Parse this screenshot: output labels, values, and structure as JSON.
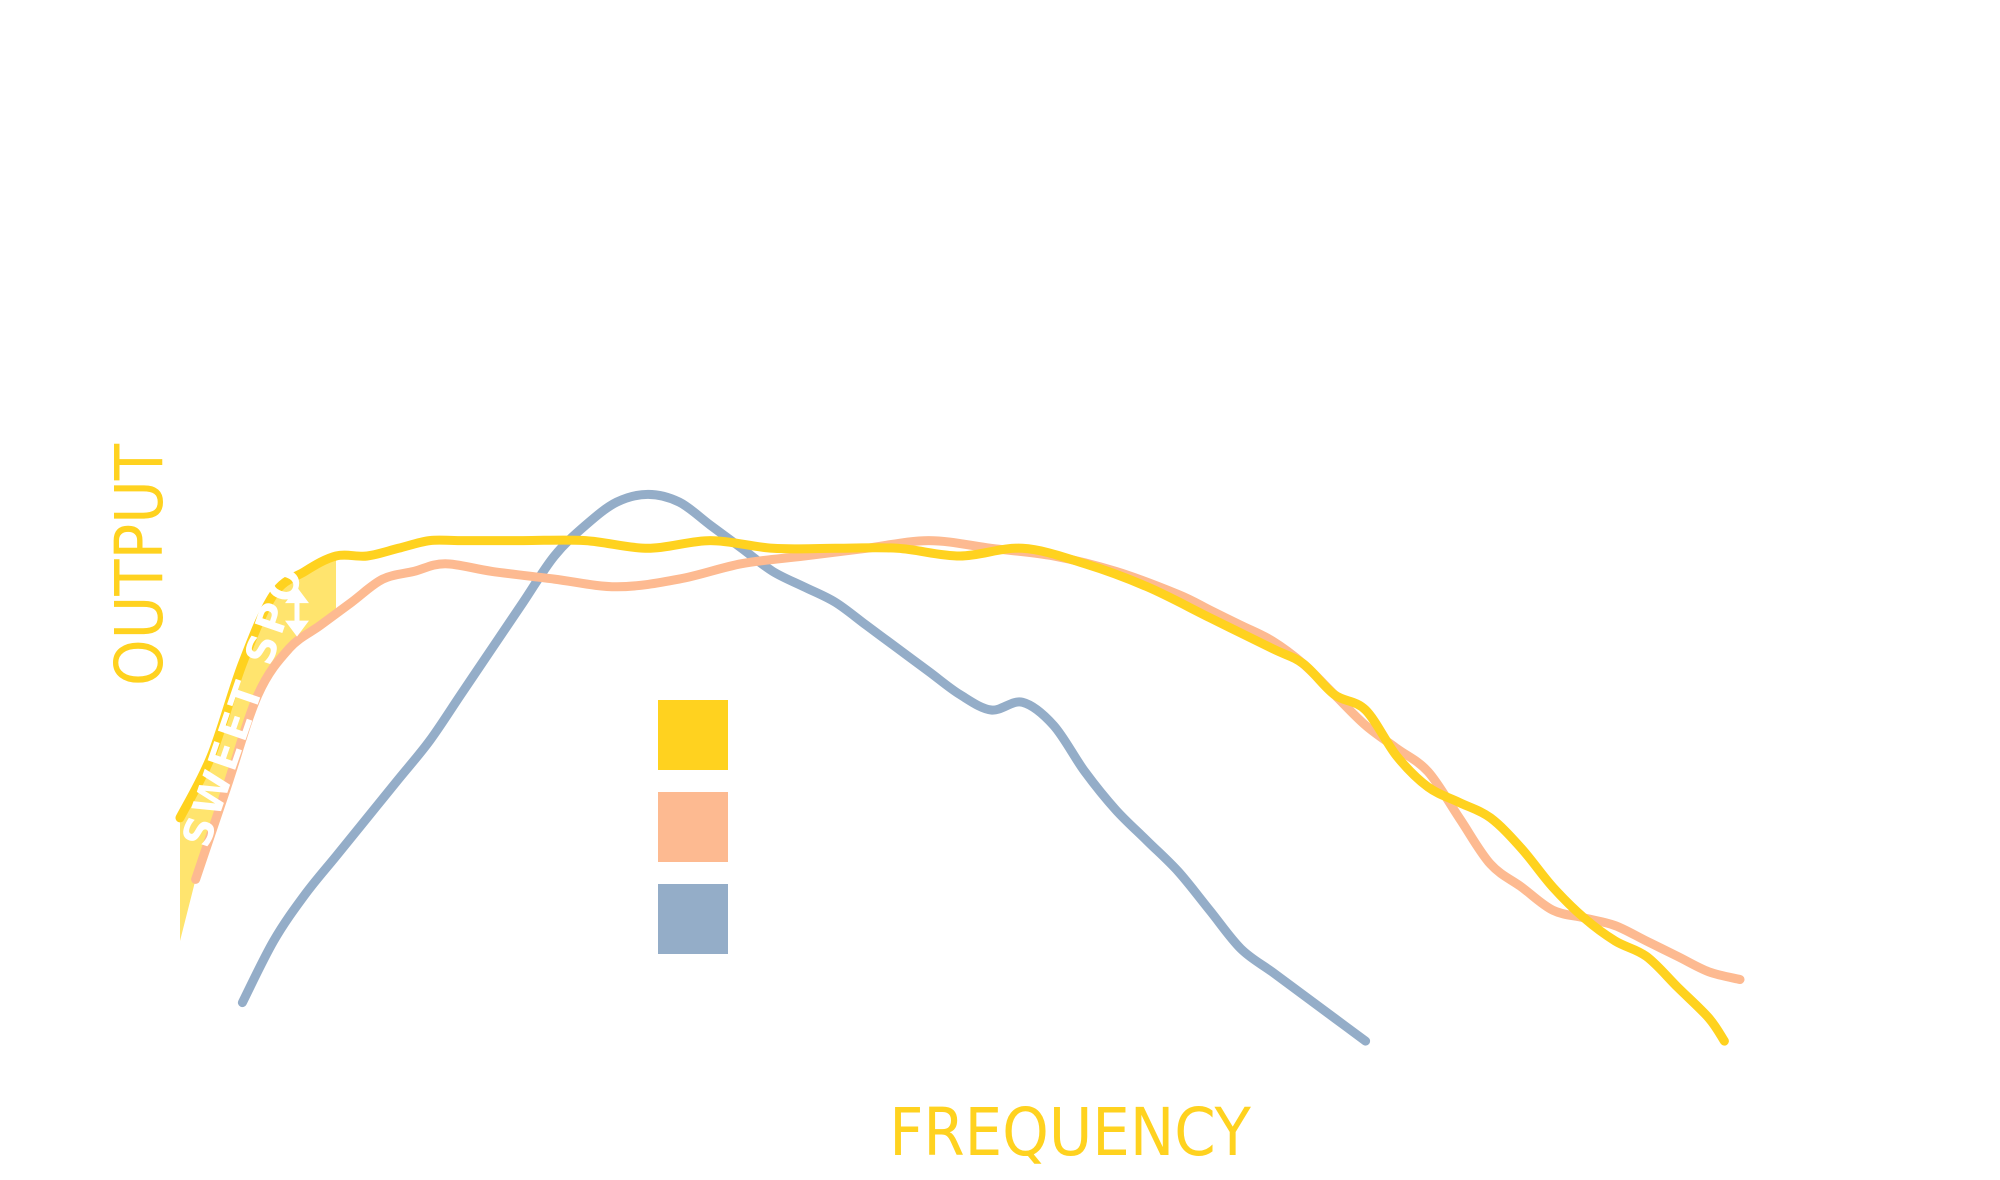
{
  "colors": {
    "background": "#ffffff",
    "yellow": "#FFD21F",
    "peach": "#FDBA91",
    "blue": "#94ADC8",
    "sweet_fill": "#FFE46E",
    "label": "#FFD21F",
    "annotation": "#ffffff"
  },
  "chart_data": {
    "type": "line",
    "title": "",
    "xlabel": "FREQUENCY",
    "ylabel": "OUTPUT",
    "x_ticks": [],
    "y_ticks": [],
    "grid": false,
    "xlim": [
      0,
      100
    ],
    "ylim": [
      0,
      100
    ],
    "legend": {
      "position": "center",
      "entries": [
        {
          "color": "#FFD21F",
          "label": ""
        },
        {
          "color": "#FDBA91",
          "label": ""
        },
        {
          "color": "#94ADC8",
          "label": ""
        }
      ]
    },
    "annotations": [
      {
        "text": "SWEET SPOT",
        "type": "shaded-band-with-arrow"
      }
    ],
    "series": [
      {
        "color": "#FFD21F",
        "x": [
          0,
          2,
          4,
          6,
          8,
          10,
          12,
          14,
          16,
          18,
          22,
          26,
          30,
          34,
          38,
          42,
          46,
          50,
          54,
          58,
          62,
          66,
          70,
          72,
          74,
          76,
          78,
          80,
          82,
          84,
          86,
          88,
          90,
          92,
          94,
          96,
          98,
          99
        ],
        "y": [
          36,
          44,
          56,
          65,
          68,
          70,
          70,
          71,
          72,
          72,
          72,
          72,
          71,
          72,
          71,
          71,
          71,
          70,
          71,
          69,
          66,
          62,
          58,
          56,
          52,
          50,
          44,
          40,
          38,
          36,
          32,
          27,
          23,
          20,
          18,
          14,
          10,
          7
        ]
      },
      {
        "color": "#FDBA91",
        "x": [
          1,
          3,
          5,
          7,
          9,
          11,
          13,
          15,
          17,
          20,
          24,
          28,
          32,
          36,
          40,
          44,
          48,
          52,
          56,
          60,
          64,
          66,
          68,
          70,
          72,
          74,
          76,
          78,
          80,
          82,
          84,
          86,
          88,
          90,
          92,
          94,
          96,
          98,
          100
        ],
        "y": [
          28,
          40,
          52,
          58,
          61,
          64,
          67,
          68,
          69,
          68,
          67,
          66,
          67,
          69,
          70,
          71,
          72,
          71,
          70,
          68,
          65,
          63,
          61,
          59,
          56,
          52,
          48,
          45,
          42,
          36,
          30,
          27,
          24,
          23,
          22,
          20,
          18,
          16,
          15
        ]
      },
      {
        "color": "#94ADC8",
        "x": [
          4,
          6,
          8,
          10,
          12,
          14,
          16,
          18,
          20,
          22,
          24,
          26,
          28,
          30,
          32,
          34,
          36,
          38,
          40,
          42,
          44,
          46,
          48,
          50,
          52,
          54,
          56,
          58,
          60,
          62,
          64,
          66,
          68,
          70,
          72,
          74,
          76
        ],
        "y": [
          12,
          20,
          26,
          31,
          36,
          41,
          46,
          52,
          58,
          64,
          70,
          74,
          77,
          78,
          77,
          74,
          71,
          68,
          66,
          64,
          61,
          58,
          55,
          52,
          50,
          51,
          48,
          42,
          37,
          33,
          29,
          24,
          19,
          16,
          13,
          10,
          7
        ]
      }
    ]
  }
}
